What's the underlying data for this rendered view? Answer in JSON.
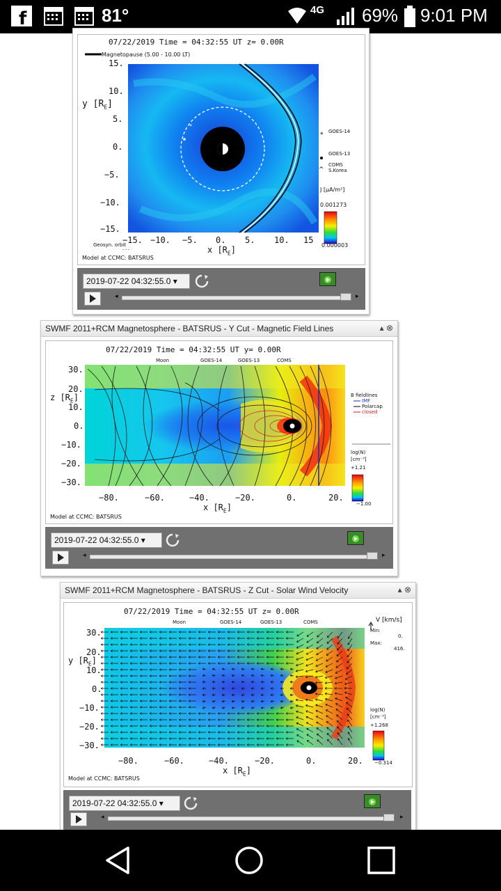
{
  "status": {
    "temperature": "81°",
    "network": "4G",
    "battery": "69%",
    "time": "9:01 PM"
  },
  "panel1": {
    "header": "07/22/2019 Time = 04:32:55 UT z= 0.00R",
    "legend_top": "Magnetopause (5.00 - 10.00 LT)",
    "yaxis": "y [R",
    "xaxis": "x [R",
    "yticks": [
      "15.",
      "10.",
      "5.",
      "0.",
      "−5.",
      "−10.",
      "−15."
    ],
    "xticks": [
      "−15.",
      "−10.",
      "−5.",
      "0.",
      "5.",
      "10.",
      "15"
    ],
    "sats": [
      "GOES-14",
      "GOES-13",
      "COMS",
      "S.Korea"
    ],
    "cbar_label": "J",
    "cbar_max": "0.001273",
    "cbar_min": "0.000003",
    "geosyn": "Geosyn. orbit",
    "credit": "Model at CCMC: BATSRUS",
    "date": "2019-07-22 04:32:55.0"
  },
  "panel2": {
    "title": "SWMF 2011+RCM Magnetosphere - BATSRUS - Y Cut - Magnetic Field Lines",
    "header": "07/22/2019 Time = 04:32:55 UT y= 0.00R",
    "legend": [
      "Moon",
      "GOES-14",
      "GOES-13",
      "COMS"
    ],
    "yaxis": "z [R",
    "xaxis": "x [R",
    "yticks": [
      "30.",
      "20.",
      "10.",
      "0.",
      "−10.",
      "−20.",
      "−30."
    ],
    "xticks": [
      "−80.",
      "−60.",
      "−40.",
      "−20.",
      "0.",
      "20."
    ],
    "fieldlines": [
      "B fieldlines",
      "IMF",
      "Polarcap",
      "closed"
    ],
    "cbar_label": "log(N)",
    "cbar_unit": "[cm⁻³]",
    "cbar_max": "+1.21",
    "cbar_min": "−1.00",
    "credit": "Model at CCMC: BATSRUS",
    "date": "2019-07-22 04:32:55.0"
  },
  "panel3": {
    "title": "SWMF 2011+RCM Magnetosphere - BATSRUS - Z Cut - Solar Wind Velocity",
    "header": "07/22/2019 Time = 04:32:55 UT z= 0.00R",
    "legend": [
      "Moon",
      "GOES-14",
      "GOES-13",
      "COMS"
    ],
    "yaxis": "y [R",
    "xaxis": "x [R",
    "yticks": [
      "30.",
      "20.",
      "10.",
      "0.",
      "−10.",
      "−20.",
      "−30."
    ],
    "xticks": [
      "−80.",
      "−60.",
      "−40.",
      "−20.",
      "0.",
      "20."
    ],
    "vel_unit": "V [km/s]",
    "min_label": "Min:",
    "min_val": "0.",
    "max_label": "Max:",
    "max_val": "416.",
    "cbar_label": "log(N)",
    "cbar_unit": "[cm⁻³]",
    "cbar_max": "+1.268",
    "cbar_min": "−0.314",
    "credit": "Model at CCMC: BATSRUS",
    "date": "2019-07-22 04:32:55.0"
  }
}
